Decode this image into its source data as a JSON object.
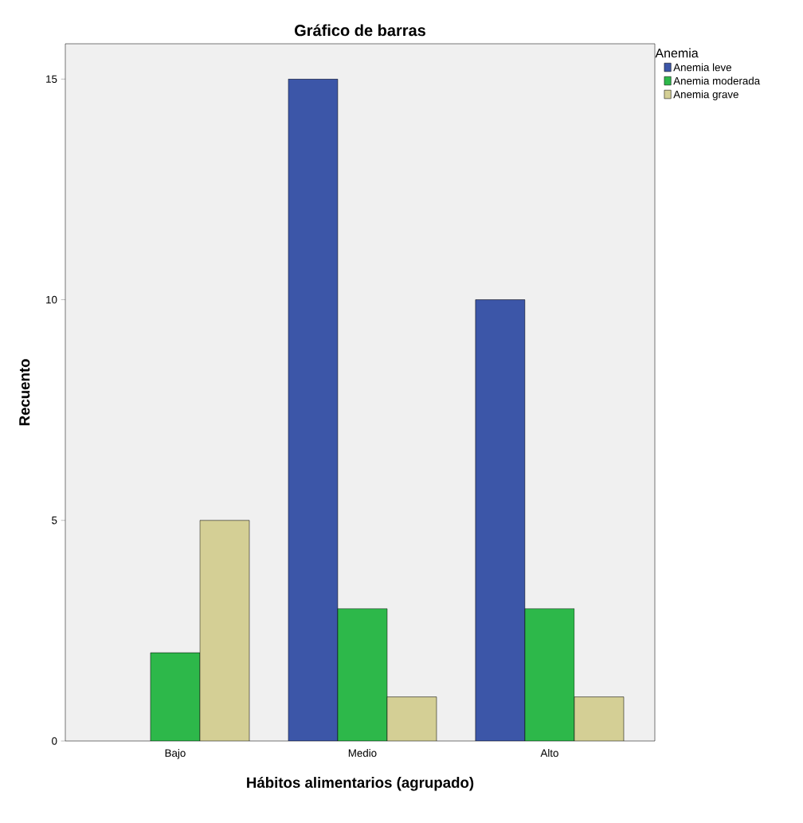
{
  "chart_data": {
    "type": "bar",
    "title": "Gráfico de barras",
    "xlabel": "Hábitos alimentarios (agrupado)",
    "ylabel": "Recuento",
    "legend_title": "Anemia",
    "categories": [
      "Bajo",
      "Medio",
      "Alto"
    ],
    "series": [
      {
        "name": "Anemia leve",
        "color": "#3c56a8",
        "values": [
          null,
          15,
          10
        ]
      },
      {
        "name": "Anemia moderada",
        "color": "#2db84a",
        "values": [
          2,
          3,
          3
        ]
      },
      {
        "name": "Anemia grave",
        "color": "#d4cf95",
        "values": [
          5,
          1,
          1
        ]
      }
    ],
    "ylim": [
      0,
      15.8
    ],
    "yticks": [
      0,
      5,
      10,
      15
    ],
    "legend": "top right",
    "grid": false
  }
}
